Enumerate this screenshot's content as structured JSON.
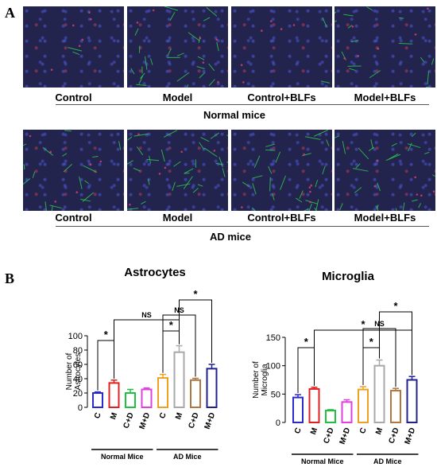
{
  "panel_a": {
    "letter": "A",
    "normal_row": {
      "conditions": [
        "Control",
        "Model",
        "Control+BLFs",
        "Model+BLFs"
      ],
      "fibers": [
        2,
        26,
        2,
        16
      ],
      "group_label": "Normal mice"
    },
    "ad_row": {
      "conditions": [
        "Control",
        "Model",
        "Control+BLFs",
        "Model+BLFs"
      ],
      "fibers": [
        18,
        30,
        26,
        24
      ],
      "group_label": "AD mice"
    }
  },
  "panel_b": {
    "letter": "B"
  },
  "colors": {
    "C": "#2a2ad0",
    "M": "#e02020",
    "C+D": "#20c040",
    "M+D": "#e040e0",
    "C_ad": "#f0a020",
    "M_ad": "#a8a8a8",
    "C+D_ad": "#b07840",
    "M+D_ad": "#202090",
    "green_fiber": "#30d050",
    "red_cell": "#e04070"
  },
  "chart_data": [
    {
      "type": "bar",
      "title": "Astrocytes",
      "ylabel": "Number of Astrocytes",
      "ylim": [
        0,
        100
      ],
      "yticks": [
        "0",
        "20",
        "40",
        "60",
        "80",
        "100"
      ],
      "categories": [
        "C",
        "M",
        "C+D",
        "M+D",
        "C",
        "M",
        "C+D",
        "M+D"
      ],
      "values": [
        20,
        34,
        20,
        25,
        41,
        77,
        38,
        54
      ],
      "errors": [
        1.5,
        4,
        5,
        2,
        5,
        9,
        2.5,
        6
      ],
      "groups": [
        {
          "name": "Normal Mice",
          "categories": [
            "C",
            "M",
            "C+D",
            "M+D"
          ]
        },
        {
          "name": "AD Mice",
          "categories": [
            "C",
            "M",
            "C+D",
            "M+D"
          ]
        }
      ],
      "comparisons": [
        {
          "from": 0,
          "to": 1,
          "label": "*"
        },
        {
          "from": 1,
          "to": 5,
          "label": "NS"
        },
        {
          "from": 4,
          "to": 5,
          "label": "*"
        },
        {
          "from": 4,
          "to": 6,
          "label": "NS"
        },
        {
          "from": 5,
          "to": 7,
          "label": "*"
        }
      ]
    },
    {
      "type": "bar",
      "title": "Microglia",
      "ylabel": "Number of Microglia",
      "ylim": [
        0,
        150
      ],
      "yticks": [
        "0",
        "50",
        "100",
        "150"
      ],
      "categories": [
        "C",
        "M",
        "C+D",
        "M+D",
        "C",
        "M",
        "C+D",
        "M+D"
      ],
      "values": [
        44,
        59,
        21,
        36,
        58,
        100,
        56,
        75
      ],
      "errors": [
        5,
        3,
        1.5,
        4,
        5,
        10,
        4,
        6
      ],
      "groups": [
        {
          "name": "Normal Mice",
          "categories": [
            "C",
            "M",
            "C+D",
            "M+D"
          ]
        },
        {
          "name": "AD Mice",
          "categories": [
            "C",
            "M",
            "C+D",
            "M+D"
          ]
        }
      ],
      "comparisons": [
        {
          "from": 0,
          "to": 1,
          "label": "*"
        },
        {
          "from": 1,
          "to": 7,
          "label": "*"
        },
        {
          "from": 4,
          "to": 5,
          "label": "*"
        },
        {
          "from": 4,
          "to": 6,
          "label": "NS"
        },
        {
          "from": 5,
          "to": 7,
          "label": "*"
        }
      ]
    }
  ]
}
